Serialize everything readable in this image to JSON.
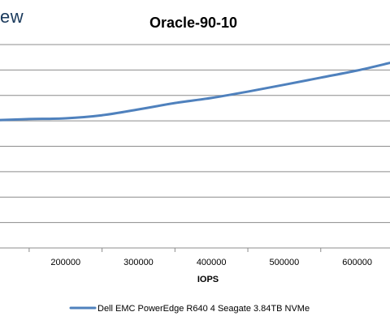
{
  "logo_fragment": "ew",
  "chart_data": {
    "type": "line",
    "title": "Oracle-90-10",
    "xlabel": "IOPS",
    "ylabel": "",
    "xlim": [
      110000,
      645000
    ],
    "ylim": [
      0,
      8
    ],
    "x_ticks": [
      200000,
      300000,
      400000,
      500000,
      600000
    ],
    "x_tick_labels": [
      "200000",
      "300000",
      "400000",
      "500000",
      "600000"
    ],
    "y_gridlines": [
      1,
      2,
      3,
      4,
      5,
      6,
      7,
      8
    ],
    "grid": true,
    "legend_position": "bottom",
    "series": [
      {
        "name": "Dell EMC PowerEdge R640 4 Seagate 3.84TB NVMe",
        "color": "#4f81bd",
        "x": [
          110000,
          150000,
          200000,
          250000,
          300000,
          350000,
          400000,
          450000,
          500000,
          550000,
          600000,
          645000
        ],
        "y": [
          5.03,
          5.07,
          5.1,
          5.22,
          5.45,
          5.7,
          5.9,
          6.15,
          6.42,
          6.7,
          6.98,
          7.28
        ]
      }
    ]
  }
}
